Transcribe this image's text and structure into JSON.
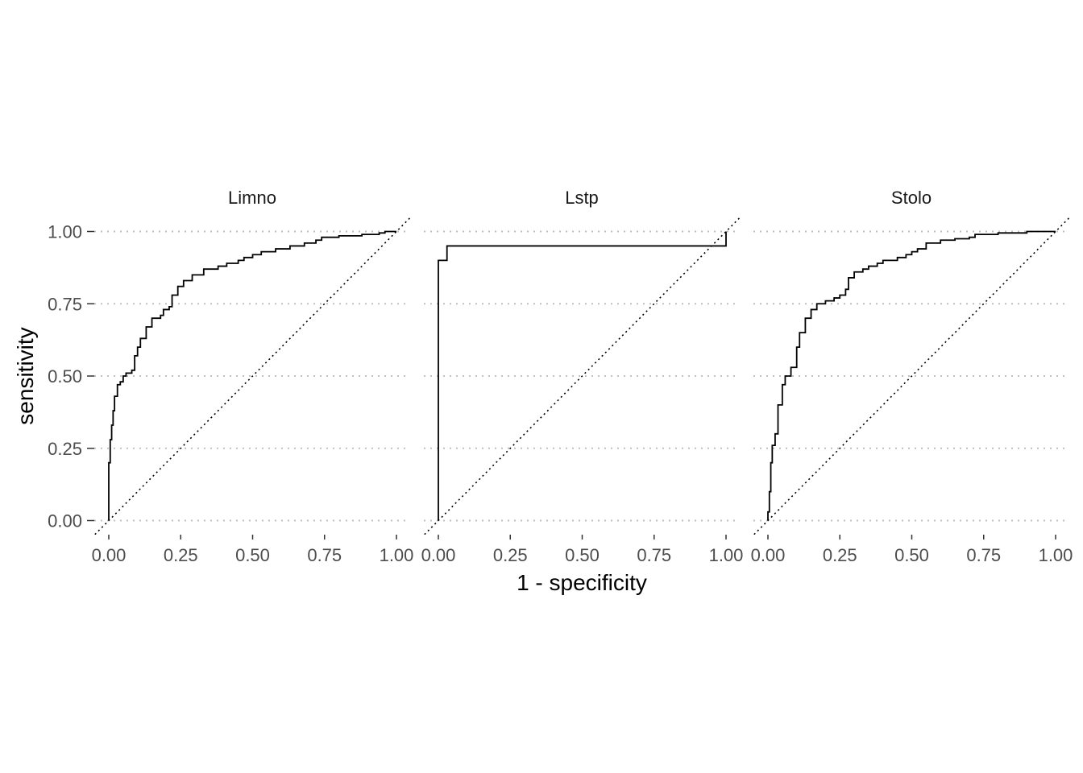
{
  "chart_data": {
    "type": "line",
    "xlabel": "1 - specificity",
    "ylabel": "sensitivity",
    "xlim": [
      0,
      1
    ],
    "ylim": [
      0,
      1
    ],
    "x_ticks": [
      "0.00",
      "0.25",
      "0.50",
      "0.75",
      "1.00"
    ],
    "y_ticks": [
      "0.00",
      "0.25",
      "0.50",
      "0.75",
      "1.00"
    ],
    "grid": "horizontal dotted major lines",
    "reference_line": "diagonal dotted y = x",
    "colors": {
      "curve": "#000000",
      "grid": "#bfbfbf",
      "tick_text": "#4d4d4d"
    },
    "panels": [
      {
        "name": "Limno",
        "points": [
          [
            0.0,
            0.0
          ],
          [
            0.0,
            0.2
          ],
          [
            0.005,
            0.28
          ],
          [
            0.01,
            0.33
          ],
          [
            0.015,
            0.38
          ],
          [
            0.02,
            0.43
          ],
          [
            0.03,
            0.47
          ],
          [
            0.04,
            0.48
          ],
          [
            0.05,
            0.5
          ],
          [
            0.06,
            0.51
          ],
          [
            0.08,
            0.52
          ],
          [
            0.09,
            0.57
          ],
          [
            0.1,
            0.6
          ],
          [
            0.11,
            0.63
          ],
          [
            0.13,
            0.67
          ],
          [
            0.15,
            0.7
          ],
          [
            0.18,
            0.71
          ],
          [
            0.19,
            0.73
          ],
          [
            0.21,
            0.74
          ],
          [
            0.22,
            0.78
          ],
          [
            0.24,
            0.81
          ],
          [
            0.26,
            0.83
          ],
          [
            0.29,
            0.85
          ],
          [
            0.33,
            0.87
          ],
          [
            0.38,
            0.88
          ],
          [
            0.41,
            0.89
          ],
          [
            0.45,
            0.9
          ],
          [
            0.47,
            0.91
          ],
          [
            0.5,
            0.92
          ],
          [
            0.53,
            0.93
          ],
          [
            0.58,
            0.94
          ],
          [
            0.63,
            0.95
          ],
          [
            0.68,
            0.96
          ],
          [
            0.72,
            0.97
          ],
          [
            0.74,
            0.98
          ],
          [
            0.8,
            0.985
          ],
          [
            0.88,
            0.99
          ],
          [
            0.94,
            0.995
          ],
          [
            0.96,
            1.0
          ],
          [
            1.0,
            1.0
          ]
        ]
      },
      {
        "name": "Lstp",
        "points": [
          [
            0.0,
            0.0
          ],
          [
            0.0,
            0.9
          ],
          [
            0.03,
            0.9
          ],
          [
            0.03,
            0.95
          ],
          [
            1.0,
            1.0
          ]
        ]
      },
      {
        "name": "Stolo",
        "points": [
          [
            0.0,
            0.0
          ],
          [
            0.0,
            0.03
          ],
          [
            0.005,
            0.1
          ],
          [
            0.01,
            0.2
          ],
          [
            0.015,
            0.26
          ],
          [
            0.025,
            0.3
          ],
          [
            0.035,
            0.4
          ],
          [
            0.05,
            0.47
          ],
          [
            0.06,
            0.5
          ],
          [
            0.08,
            0.53
          ],
          [
            0.1,
            0.6
          ],
          [
            0.11,
            0.65
          ],
          [
            0.13,
            0.7
          ],
          [
            0.15,
            0.73
          ],
          [
            0.17,
            0.75
          ],
          [
            0.2,
            0.76
          ],
          [
            0.23,
            0.77
          ],
          [
            0.25,
            0.78
          ],
          [
            0.27,
            0.8
          ],
          [
            0.28,
            0.84
          ],
          [
            0.3,
            0.86
          ],
          [
            0.33,
            0.87
          ],
          [
            0.35,
            0.88
          ],
          [
            0.38,
            0.89
          ],
          [
            0.4,
            0.9
          ],
          [
            0.45,
            0.91
          ],
          [
            0.48,
            0.92
          ],
          [
            0.5,
            0.93
          ],
          [
            0.52,
            0.94
          ],
          [
            0.55,
            0.96
          ],
          [
            0.6,
            0.97
          ],
          [
            0.65,
            0.975
          ],
          [
            0.7,
            0.98
          ],
          [
            0.72,
            0.99
          ],
          [
            0.8,
            0.995
          ],
          [
            0.9,
            1.0
          ],
          [
            1.0,
            1.0
          ]
        ]
      }
    ]
  }
}
